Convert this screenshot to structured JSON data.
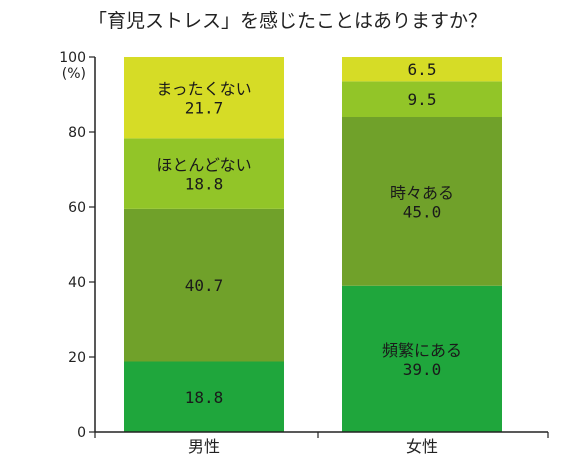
{
  "chart_data": {
    "type": "bar",
    "stacked": true,
    "title": "「育児ストレス」を感じたことはありますか？",
    "ylabel": "(%)",
    "ylim": [
      0,
      100
    ],
    "yticks": [
      0,
      20,
      40,
      60,
      80,
      100
    ],
    "categories": [
      "男性",
      "女性"
    ],
    "series": [
      {
        "color": "#1fa63c",
        "values": [
          18.8,
          39.0
        ],
        "labels": [
          "",
          "頻繁にある"
        ]
      },
      {
        "color": "#70a12a",
        "values": [
          40.7,
          45.0
        ],
        "labels": [
          "",
          "時々ある"
        ]
      },
      {
        "color": "#92c528",
        "values": [
          18.8,
          9.5
        ],
        "labels": [
          "ほとんどない",
          ""
        ]
      },
      {
        "color": "#d6dc26",
        "values": [
          21.7,
          6.5
        ],
        "labels": [
          "まったくない",
          ""
        ]
      }
    ],
    "value_format": "one-decimal"
  }
}
